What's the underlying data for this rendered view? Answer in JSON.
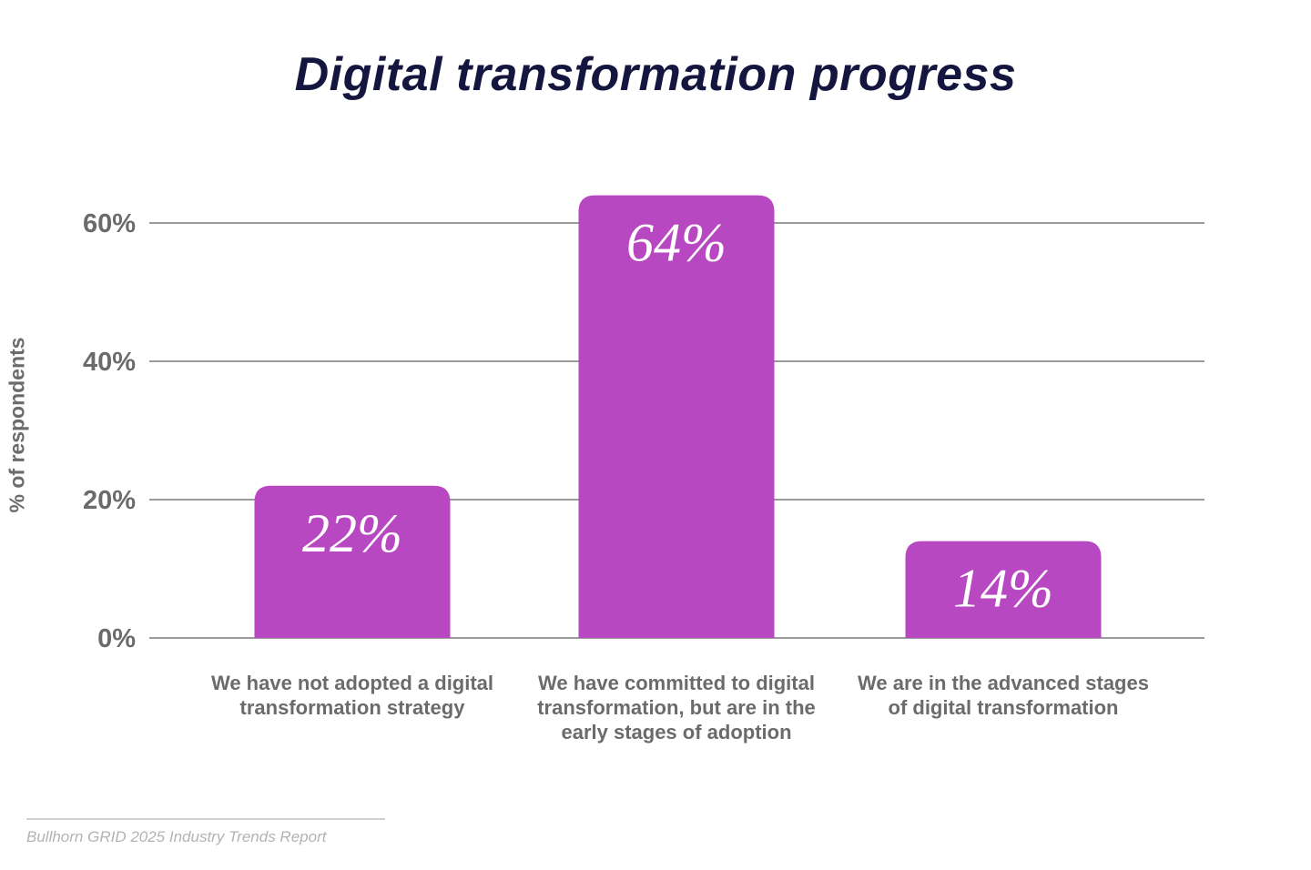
{
  "source": "Bullhorn GRID 2025 Industry Trends Report",
  "colors": {
    "bar": "#b847c2",
    "title": "#14163f",
    "text": "#6b6b6b",
    "grid": "#9a9a9a"
  },
  "chart_data": {
    "type": "bar",
    "title": "Digital transformation progress",
    "ylabel": "% of respondents",
    "categories": [
      "We have not adopted a digital transformation strategy",
      "We have committed to digital transformation, but are in the early stages of adoption",
      "We are in the advanced stages of digital transformation"
    ],
    "values": [
      22,
      64,
      14
    ],
    "data_labels": [
      "22%",
      "64%",
      "14%"
    ],
    "yticks": [
      0,
      20,
      40,
      60
    ],
    "ytick_labels": [
      "0%",
      "20%",
      "40%",
      "60%"
    ],
    "ylim": [
      0,
      64
    ],
    "grid": true,
    "legend": "none"
  }
}
